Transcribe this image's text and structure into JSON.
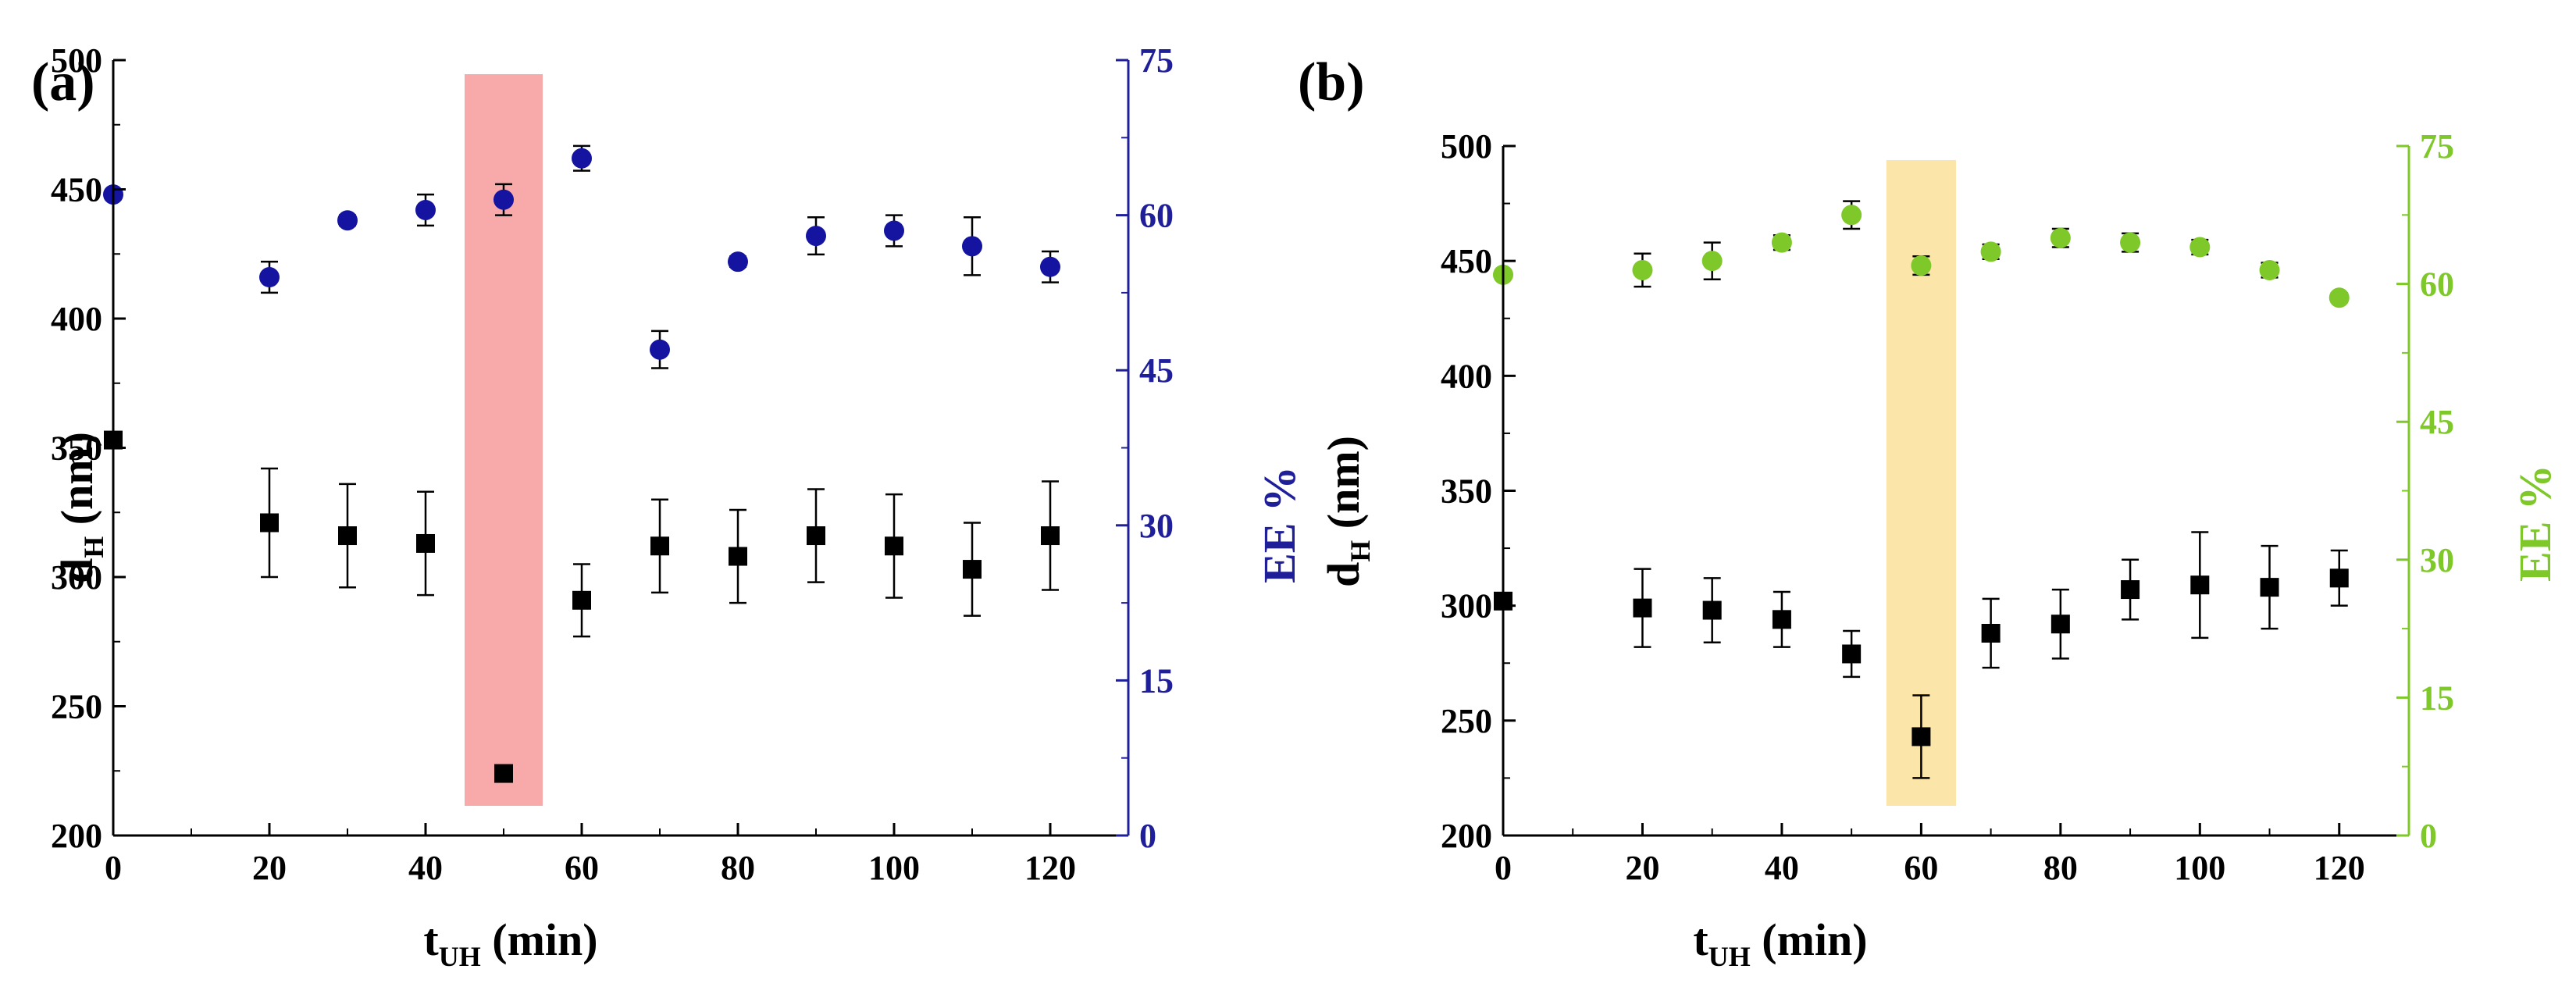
{
  "chart_data": [
    {
      "type": "scatter",
      "panel_label": "(a)",
      "x": [
        0,
        20,
        30,
        40,
        50,
        60,
        70,
        80,
        90,
        100,
        110,
        120
      ],
      "xlim": [
        0,
        130
      ],
      "xticks": [
        "0",
        "20",
        "40",
        "60",
        "80",
        "100",
        "120"
      ],
      "xlabel_main": "t",
      "xlabel_sub": "UH",
      "xlabel_unit": "(min)",
      "ylabel_main": "d",
      "ylabel_sub": "H",
      "ylabel_unit": "(nm)",
      "ylim": [
        200,
        500
      ],
      "yticks": [
        "200",
        "250",
        "300",
        "350",
        "400",
        "450",
        "500"
      ],
      "y2label": "EE %",
      "y2lim": [
        0,
        75
      ],
      "y2ticks": [
        "0",
        "15",
        "30",
        "45",
        "60",
        "75"
      ],
      "accent_color": "#1f1f9a",
      "highlight": {
        "x_range": [
          45,
          55
        ],
        "color": "#f7a1a1"
      },
      "series": [
        {
          "name": "dH",
          "axis": "left",
          "marker": "square",
          "color": "#000000",
          "values": [
            353,
            321,
            316,
            313,
            224,
            291,
            312,
            308,
            316,
            312,
            303,
            316
          ],
          "errors": [
            0,
            21,
            20,
            20,
            2,
            14,
            18,
            18,
            18,
            20,
            18,
            21
          ]
        },
        {
          "name": "EE %",
          "axis": "right",
          "marker": "circle",
          "color": "#1414a0",
          "values": [
            62,
            54,
            59.5,
            60.5,
            61.5,
            65.5,
            47,
            55.5,
            58,
            58.5,
            57,
            55
          ],
          "errors": [
            0,
            1.5,
            0.5,
            1.5,
            1.5,
            1.2,
            1.8,
            0.5,
            1.8,
            1.5,
            2.8,
            1.5
          ]
        }
      ]
    },
    {
      "type": "scatter",
      "panel_label": "(b)",
      "x": [
        0,
        20,
        30,
        40,
        50,
        60,
        70,
        80,
        90,
        100,
        110,
        120
      ],
      "xlim": [
        0,
        130
      ],
      "xticks": [
        "0",
        "20",
        "40",
        "60",
        "80",
        "100",
        "120"
      ],
      "xlabel_main": "t",
      "xlabel_sub": "UH",
      "xlabel_unit": "(min)",
      "ylabel_main": "d",
      "ylabel_sub": "H",
      "ylabel_unit": "(nm)",
      "ylim": [
        200,
        500
      ],
      "yticks": [
        "200",
        "250",
        "300",
        "350",
        "400",
        "450",
        "500"
      ],
      "y2label": "EE %",
      "y2lim": [
        0,
        75
      ],
      "y2ticks": [
        "0",
        "15",
        "30",
        "45",
        "60",
        "75"
      ],
      "accent_color": "#7ec82a",
      "highlight": {
        "x_range": [
          55,
          65
        ],
        "color": "#fbe2a0"
      },
      "series": [
        {
          "name": "dH",
          "axis": "left",
          "marker": "square",
          "color": "#000000",
          "values": [
            302,
            299,
            298,
            294,
            279,
            243,
            288,
            292,
            307,
            309,
            308,
            312
          ],
          "errors": [
            0,
            17,
            14,
            12,
            10,
            18,
            15,
            15,
            13,
            23,
            18,
            12
          ]
        },
        {
          "name": "EE %",
          "axis": "right",
          "marker": "circle",
          "color": "#7ec82a",
          "values": [
            61,
            61.5,
            62.5,
            64.5,
            67.5,
            62,
            63.5,
            65,
            64.5,
            64,
            61.5,
            58.5
          ],
          "errors": [
            0,
            1.8,
            2,
            0.8,
            1.5,
            1,
            0.8,
            1,
            1,
            0.8,
            0.8,
            0.5
          ]
        }
      ]
    }
  ]
}
